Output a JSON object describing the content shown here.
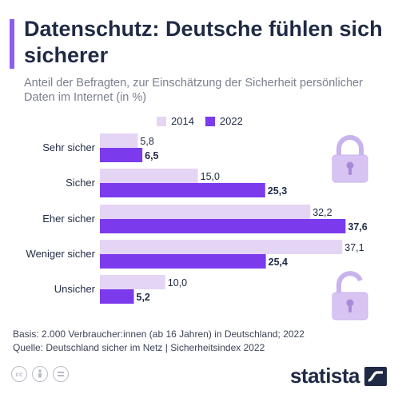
{
  "title": "Datenschutz: Deutsche fühlen sich sicherer",
  "subtitle": "Anteil der Befragten, zur Einschätzung der Sicherheit persönlicher Daten im Internet (in %)",
  "colors": {
    "accent": "#8b5cf6",
    "series_2014": "#e5d5f5",
    "series_2022": "#7c3aed",
    "label_text": "#1f2a44"
  },
  "chart_data": {
    "type": "bar",
    "orientation": "horizontal",
    "categories": [
      "Sehr sicher",
      "Sicher",
      "Eher sicher",
      "Weniger sicher",
      "Unsicher"
    ],
    "series": [
      {
        "name": "2014",
        "values": [
          5.8,
          15.0,
          32.2,
          37.1,
          10.0
        ],
        "labels": [
          "5,8",
          "15,0",
          "32,2",
          "37,1",
          "10,0"
        ]
      },
      {
        "name": "2022",
        "values": [
          6.5,
          25.3,
          37.6,
          25.4,
          5.2
        ],
        "labels": [
          "6,5",
          "25,3",
          "37,6",
          "25,4",
          "5,2"
        ]
      }
    ],
    "xlim": [
      0,
      40
    ],
    "legend": "top",
    "grid": false
  },
  "footer": {
    "basis": "Basis: 2.000 Verbraucher:innen (ab 16 Jahren) in Deutschland; 2022",
    "quelle": "Quelle: Deutschland sicher im Netz | Sicherheitsindex 2022"
  },
  "icons": [
    "lock-closed-icon",
    "lock-open-icon",
    "cc-icon",
    "by-icon",
    "nd-icon",
    "statista-logo-icon"
  ],
  "brand": {
    "name": "statista"
  }
}
